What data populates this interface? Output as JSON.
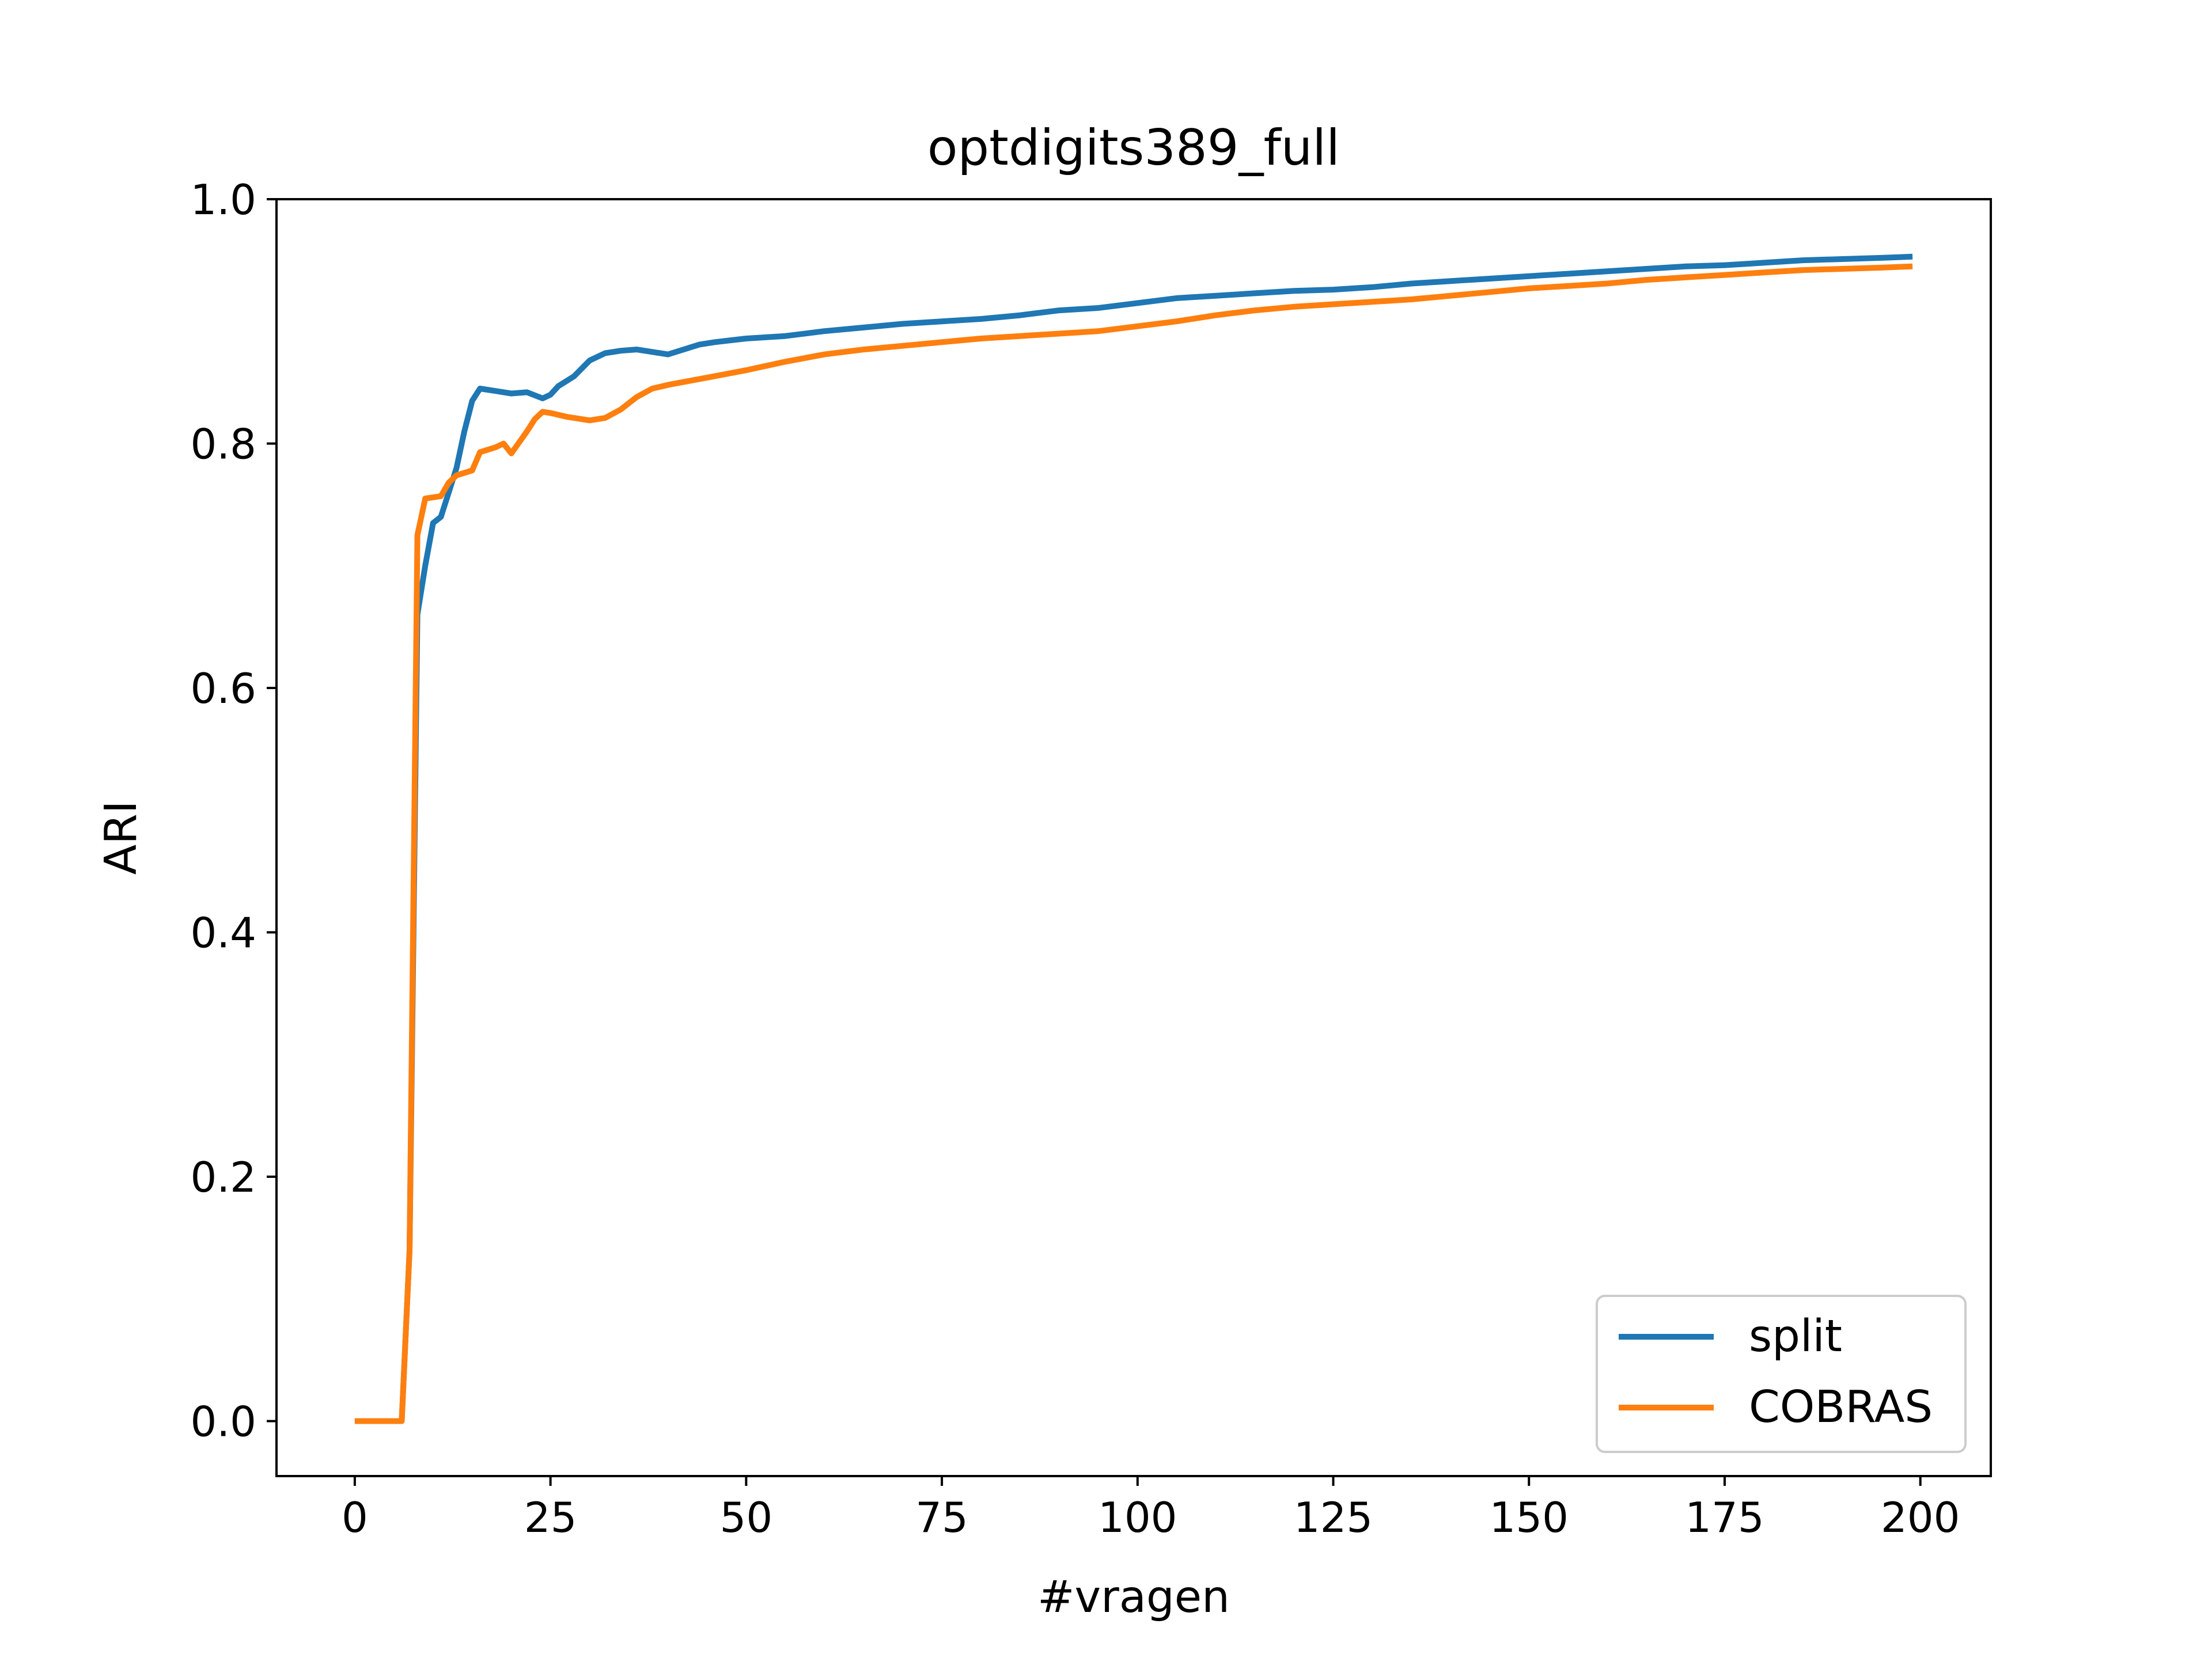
{
  "chart_data": {
    "type": "line",
    "title": "optdigits389_full",
    "xlabel": "#vragen",
    "ylabel": "ARI",
    "xlim": [
      -10,
      209
    ],
    "ylim": [
      -0.045,
      1.0
    ],
    "xticks": [
      0,
      25,
      50,
      75,
      100,
      125,
      150,
      175,
      200
    ],
    "yticks": [
      0.0,
      0.2,
      0.4,
      0.6,
      0.8,
      1.0
    ],
    "xtick_labels": [
      "0",
      "25",
      "50",
      "75",
      "100",
      "125",
      "150",
      "175",
      "200"
    ],
    "ytick_labels": [
      "0.0",
      "0.2",
      "0.4",
      "0.6",
      "0.8",
      "1.0"
    ],
    "grid": false,
    "legend_position": "bottom-right",
    "series": [
      {
        "name": "split",
        "color": "#1f77b4",
        "points": [
          [
            0,
            0.0
          ],
          [
            6,
            0.0
          ],
          [
            7,
            0.14
          ],
          [
            8,
            0.66
          ],
          [
            9,
            0.7
          ],
          [
            10,
            0.735
          ],
          [
            11,
            0.74
          ],
          [
            12,
            0.76
          ],
          [
            13,
            0.78
          ],
          [
            14,
            0.81
          ],
          [
            15,
            0.835
          ],
          [
            16,
            0.845
          ],
          [
            18,
            0.843
          ],
          [
            20,
            0.841
          ],
          [
            22,
            0.842
          ],
          [
            24,
            0.837
          ],
          [
            25,
            0.84
          ],
          [
            26,
            0.847
          ],
          [
            28,
            0.855
          ],
          [
            30,
            0.868
          ],
          [
            32,
            0.874
          ],
          [
            34,
            0.876
          ],
          [
            36,
            0.877
          ],
          [
            38,
            0.875
          ],
          [
            40,
            0.873
          ],
          [
            42,
            0.877
          ],
          [
            44,
            0.881
          ],
          [
            46,
            0.883
          ],
          [
            50,
            0.886
          ],
          [
            55,
            0.888
          ],
          [
            60,
            0.892
          ],
          [
            65,
            0.895
          ],
          [
            70,
            0.898
          ],
          [
            75,
            0.9
          ],
          [
            80,
            0.902
          ],
          [
            85,
            0.905
          ],
          [
            90,
            0.909
          ],
          [
            95,
            0.911
          ],
          [
            100,
            0.915
          ],
          [
            105,
            0.919
          ],
          [
            110,
            0.921
          ],
          [
            115,
            0.923
          ],
          [
            120,
            0.925
          ],
          [
            125,
            0.926
          ],
          [
            130,
            0.928
          ],
          [
            135,
            0.931
          ],
          [
            140,
            0.933
          ],
          [
            145,
            0.935
          ],
          [
            150,
            0.937
          ],
          [
            155,
            0.939
          ],
          [
            160,
            0.941
          ],
          [
            165,
            0.943
          ],
          [
            170,
            0.945
          ],
          [
            175,
            0.946
          ],
          [
            180,
            0.948
          ],
          [
            185,
            0.95
          ],
          [
            190,
            0.951
          ],
          [
            195,
            0.952
          ],
          [
            199,
            0.953
          ]
        ]
      },
      {
        "name": "COBRAS",
        "color": "#ff7f0e",
        "points": [
          [
            0,
            0.0
          ],
          [
            6,
            0.0
          ],
          [
            7,
            0.14
          ],
          [
            8,
            0.725
          ],
          [
            9,
            0.755
          ],
          [
            11,
            0.757
          ],
          [
            12,
            0.768
          ],
          [
            13,
            0.774
          ],
          [
            15,
            0.778
          ],
          [
            16,
            0.793
          ],
          [
            18,
            0.797
          ],
          [
            19,
            0.8
          ],
          [
            20,
            0.792
          ],
          [
            22,
            0.81
          ],
          [
            23,
            0.82
          ],
          [
            24,
            0.826
          ],
          [
            25,
            0.825
          ],
          [
            27,
            0.822
          ],
          [
            30,
            0.819
          ],
          [
            32,
            0.821
          ],
          [
            34,
            0.828
          ],
          [
            36,
            0.838
          ],
          [
            38,
            0.845
          ],
          [
            40,
            0.848
          ],
          [
            45,
            0.854
          ],
          [
            50,
            0.86
          ],
          [
            55,
            0.867
          ],
          [
            60,
            0.873
          ],
          [
            65,
            0.877
          ],
          [
            70,
            0.88
          ],
          [
            75,
            0.883
          ],
          [
            80,
            0.886
          ],
          [
            85,
            0.888
          ],
          [
            90,
            0.89
          ],
          [
            95,
            0.892
          ],
          [
            100,
            0.896
          ],
          [
            105,
            0.9
          ],
          [
            110,
            0.905
          ],
          [
            115,
            0.909
          ],
          [
            120,
            0.912
          ],
          [
            125,
            0.914
          ],
          [
            130,
            0.916
          ],
          [
            135,
            0.918
          ],
          [
            140,
            0.921
          ],
          [
            145,
            0.924
          ],
          [
            150,
            0.927
          ],
          [
            155,
            0.929
          ],
          [
            160,
            0.931
          ],
          [
            165,
            0.934
          ],
          [
            170,
            0.936
          ],
          [
            175,
            0.938
          ],
          [
            180,
            0.94
          ],
          [
            185,
            0.942
          ],
          [
            190,
            0.943
          ],
          [
            195,
            0.944
          ],
          [
            199,
            0.945
          ]
        ]
      }
    ]
  }
}
